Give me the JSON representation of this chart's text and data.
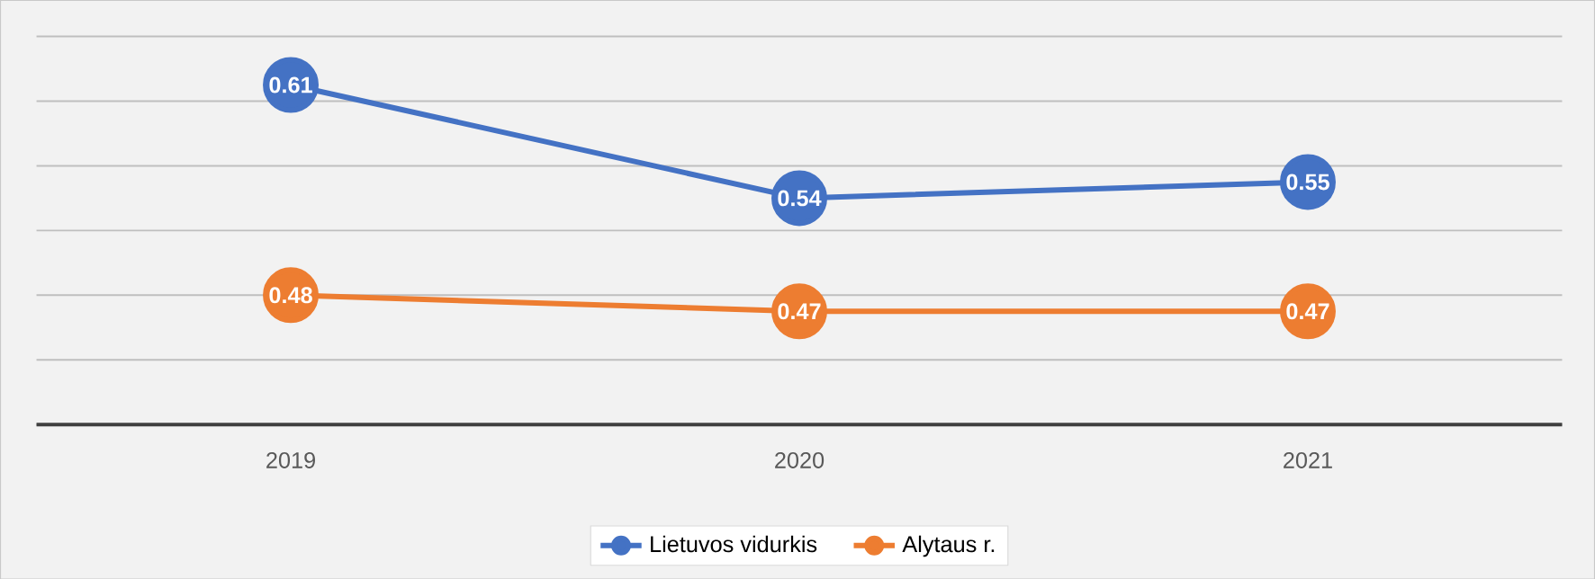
{
  "chart_data": {
    "type": "line",
    "categories": [
      "2019",
      "2020",
      "2021"
    ],
    "series": [
      {
        "name": "Lietuvos vidurkis",
        "color": "#4472c4",
        "values": [
          0.61,
          0.54,
          0.55
        ]
      },
      {
        "name": "Alytaus r.",
        "color": "#ed7d31",
        "values": [
          0.48,
          0.47,
          0.47
        ]
      }
    ],
    "ylim": [
      0.4,
      0.64
    ],
    "yticks": [
      {
        "value": 0.4,
        "label": null
      },
      {
        "value": 0.44,
        "label": null
      },
      {
        "value": 0.48,
        "label": null
      },
      {
        "value": 0.52,
        "label": null
      },
      {
        "value": 0.56,
        "label": null
      },
      {
        "value": 0.6,
        "label": null
      },
      {
        "value": 0.64,
        "label": null
      }
    ],
    "grid": "y",
    "legend": "bottom",
    "marker": "circle",
    "line_style": "solid",
    "data_labels": true,
    "tick_labels": "x"
  }
}
